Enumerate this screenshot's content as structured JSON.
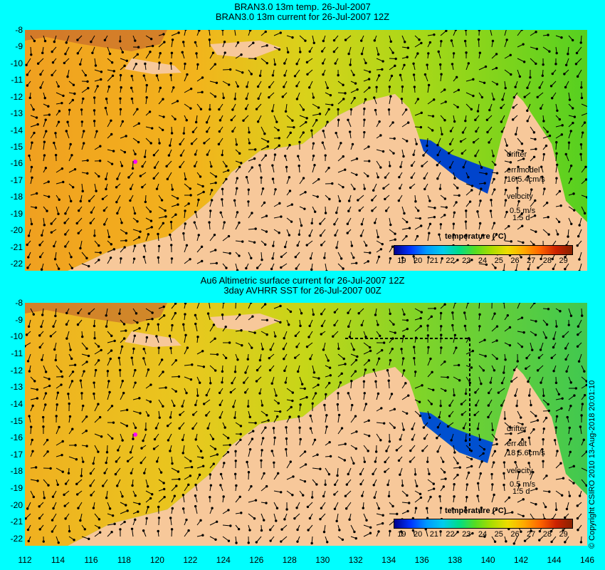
{
  "top_panel": {
    "title_line1": "BRAN3.0 13m temp. 26-Jul-2007",
    "title_line2": "BRAN3.0 13m current for 26-Jul-2007 12Z",
    "drifter_label": "drifter",
    "err_label": "err model",
    "err_value": "16 5.4cm/s",
    "velocity_label": "velocity",
    "velocity_scale": "0.5 m/s",
    "velocity_time": "1.5 d"
  },
  "bottom_panel": {
    "title_line1": "Au6 Altimetric surface current for 26-Jul-2007 12Z",
    "title_line2": "3day AVHRR SST for 26-Jul-2007 00Z",
    "drifter_label": "drifter",
    "err_label": "err alt",
    "err_value": "18 5.6cm/s",
    "velocity_label": "velocity",
    "velocity_scale": "0.5 m/s",
    "velocity_time": "1.5 d"
  },
  "legend": {
    "title": "temperature (°C)",
    "ticks": [
      "19",
      "20",
      "21",
      "22",
      "23",
      "24",
      "25",
      "26",
      "27",
      "28",
      "29"
    ],
    "colors": [
      "#00008b",
      "#0033ff",
      "#0099ff",
      "#00ccee",
      "#00dd88",
      "#55dd22",
      "#aadd00",
      "#eedd00",
      "#ffaa00",
      "#ff6600",
      "#cc2200",
      "#882200"
    ]
  },
  "axes": {
    "latitudes": [
      "-8",
      "-9",
      "-10",
      "-11",
      "-12",
      "-13",
      "-14",
      "-15",
      "-16",
      "-17",
      "-18",
      "-19",
      "-20",
      "-21",
      "-22"
    ],
    "longitudes": [
      "112",
      "114",
      "116",
      "118",
      "120",
      "122",
      "124",
      "126",
      "128",
      "130",
      "132",
      "134",
      "136",
      "138",
      "140",
      "142",
      "144",
      "146"
    ]
  },
  "copyright": "© Copyright CSIRO 2010   13-Aug-2018 20:01:10",
  "colors": {
    "land": "#f7c89a",
    "background": "#00ffff"
  }
}
